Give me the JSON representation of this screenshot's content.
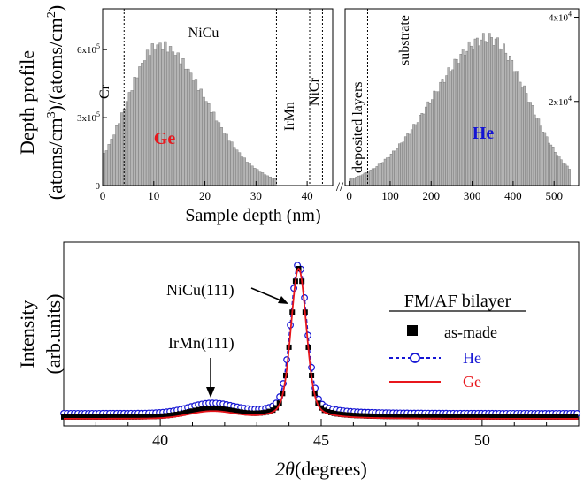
{
  "chart_data": [
    {
      "type": "bar",
      "panel": "depth-profile",
      "ylabel_line1": "Depth profile",
      "ylabel_line2": "(atoms/cm",
      "ylabel_sup1": "3",
      "ylabel_mid": ")/(atoms/cm",
      "ylabel_sup2": "2",
      "ylabel_end": ")",
      "xlabel": "Sample depth (nm)",
      "axis_break": "//",
      "left_axis": {
        "xlim": [
          0,
          45
        ],
        "ylim": [
          0,
          780000
        ],
        "xticks": [
          "0",
          "10",
          "20",
          "30",
          "40"
        ],
        "yticks": [
          {
            "base": "0",
            "exp": "",
            "value": 0
          },
          {
            "base": "3x10",
            "exp": "5",
            "value": 300000
          },
          {
            "base": "6x10",
            "exp": "5",
            "value": 600000
          }
        ]
      },
      "right_axis": {
        "xlim": [
          -10,
          560
        ],
        "ylim": [
          0,
          42000
        ],
        "xticks": [
          "0",
          "100",
          "200",
          "300",
          "400",
          "500"
        ],
        "yticks": [
          {
            "base": "2x10",
            "exp": "4",
            "value": 20000
          },
          {
            "base": "4x10",
            "exp": "4",
            "value": 40000
          }
        ]
      },
      "series": [
        {
          "name": "Ge",
          "color": "#e8161c",
          "x_range": [
            0,
            34
          ],
          "peak_depth": 11,
          "peak_value": 620000
        },
        {
          "name": "He",
          "color": "#1414d4",
          "x_range": [
            0,
            540
          ],
          "peak_depth": 340,
          "peak_value": 35000
        }
      ],
      "layer_boundaries_nm": [
        4.2,
        34,
        40.5,
        43,
        45
      ],
      "layers": [
        {
          "label": "Cr",
          "depth_nm": 2
        },
        {
          "label": "NiCu",
          "depth_nm": 20
        },
        {
          "label": "IrMn",
          "depth_nm": 37
        },
        {
          "label": "NiCr",
          "depth_nm": 41.8
        },
        {
          "label": "deposited layers",
          "depth_nm": 0
        },
        {
          "label": "substrate",
          "depth_nm": 190
        }
      ]
    },
    {
      "type": "line",
      "panel": "xrd",
      "xlabel_theta": "2θ",
      "xlabel_unit": "(degrees)",
      "ylabel_line1": "Intensity",
      "ylabel_line2": "(arb.units)",
      "xlim": [
        37,
        53
      ],
      "xticks": [
        "40",
        "45",
        "50"
      ],
      "legend_title": "FM/AF bilayer",
      "legend_position": "right",
      "series": [
        {
          "name": "as-made",
          "style": "black squares",
          "color": "#000000"
        },
        {
          "name": "He",
          "style": "dashed line with open circles",
          "color": "#1414d4"
        },
        {
          "name": "Ge",
          "style": "solid line",
          "color": "#e8161c"
        }
      ],
      "annotations": [
        {
          "text": "NiCu(111)",
          "x": 44.2,
          "arrow_target": "peak"
        },
        {
          "text": "IrMn(111)",
          "x": 41.6,
          "arrow_target": "peak"
        }
      ],
      "peaks": [
        {
          "position": 44.3,
          "relative_height": 1.0
        },
        {
          "position": 41.6,
          "relative_height": 0.05
        }
      ]
    }
  ]
}
